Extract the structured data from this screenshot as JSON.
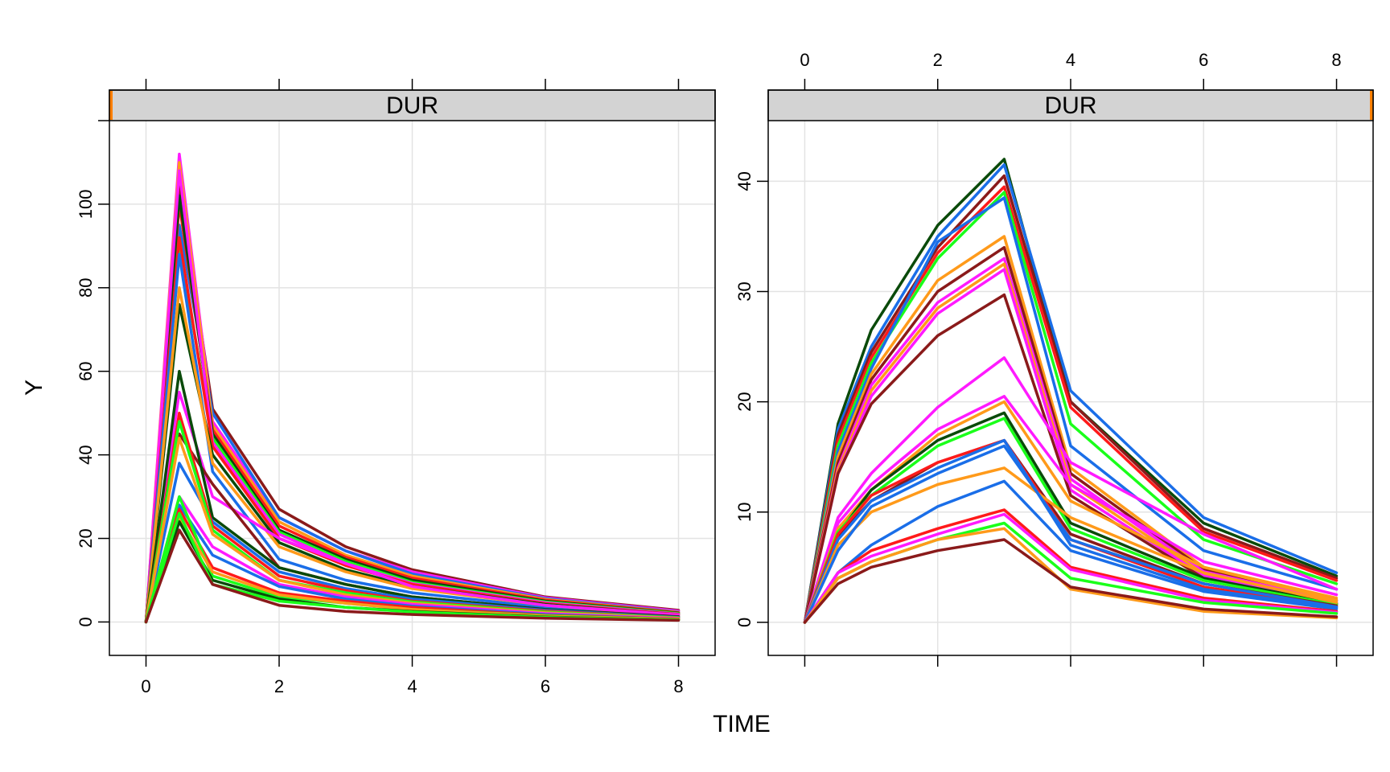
{
  "chart_data": {
    "type": "line",
    "xlabel": "TIME",
    "ylabel": "Y",
    "colors": [
      "#1a6ee8",
      "#ff9a1a",
      "#ff1aff",
      "#ff1a1a",
      "#1aff1a",
      "#0a4a0a",
      "#8a1a1a"
    ],
    "panels": [
      {
        "strip": "DUR",
        "x_tick_side": "bottom",
        "y_tick_side": "left",
        "xlim": [
          -0.55,
          8.55
        ],
        "ylim": [
          -8,
          120
        ],
        "xticks": [
          0,
          2,
          4,
          6,
          8
        ],
        "yticks": [
          0,
          20,
          40,
          60,
          80,
          100
        ],
        "x": [
          0,
          0.5,
          1,
          2,
          3,
          4,
          6,
          8
        ],
        "series": [
          {
            "color": "#8a1a1a",
            "values": [
              0,
              105,
              51,
              27,
              18,
              12.5,
              6,
              2.8
            ]
          },
          {
            "color": "#ff1aff",
            "values": [
              0,
              112,
              48,
              25,
              17,
              12,
              5.8,
              2.6
            ]
          },
          {
            "color": "#1a6ee8",
            "values": [
              0,
              95,
              50,
              25,
              17,
              11.5,
              5.6,
              2.4
            ]
          },
          {
            "color": "#ff9a1a",
            "values": [
              0,
              110,
              47,
              24,
              16,
              11,
              5.4,
              2.3
            ]
          },
          {
            "color": "#ff1a1a",
            "values": [
              0,
              100,
              46,
              23,
              15.5,
              10.5,
              5.2,
              2.2
            ]
          },
          {
            "color": "#0a4a0a",
            "values": [
              0,
              102,
              45,
              22,
              15,
              10,
              5,
              2.1
            ]
          },
          {
            "color": "#1aff1a",
            "values": [
              0,
              90,
              44,
              21.5,
              14.5,
              9.5,
              4.8,
              2
            ]
          },
          {
            "color": "#ff1aff",
            "values": [
              0,
              108,
              43,
              21,
              14,
              9.2,
              4.6,
              1.9
            ]
          },
          {
            "color": "#ff1a1a",
            "values": [
              0,
              92,
              42,
              20,
              13.5,
              9,
              4.4,
              1.8
            ]
          },
          {
            "color": "#0a4a0a",
            "values": [
              0,
              76,
              40,
              19,
              12.5,
              8.5,
              4.2,
              1.7
            ]
          },
          {
            "color": "#1a6ee8",
            "values": [
              0,
              88,
              36,
              15,
              10,
              7,
              3.5,
              1.5
            ]
          },
          {
            "color": "#ff9a1a",
            "values": [
              0,
              80,
              38,
              18,
              12,
              8,
              4,
              1.6
            ]
          },
          {
            "color": "#ff1aff",
            "values": [
              0,
              55,
              30,
              20,
              14,
              8.5,
              4,
              1.7
            ]
          },
          {
            "color": "#8a1a1a",
            "values": [
              0,
              45,
              33,
              13,
              9,
              6,
              3,
              1.3
            ]
          },
          {
            "color": "#0a4a0a",
            "values": [
              0,
              60,
              25,
              13,
              9,
              6,
              3,
              1.2
            ]
          },
          {
            "color": "#1a6ee8",
            "values": [
              0,
              38,
              24,
              12,
              8,
              5.5,
              2.8,
              1.1
            ]
          },
          {
            "color": "#ff1a1a",
            "values": [
              0,
              50,
              23,
              11,
              7.5,
              5,
              2.6,
              1
            ]
          },
          {
            "color": "#1aff1a",
            "values": [
              0,
              48,
              22,
              10,
              7,
              4.8,
              2.4,
              1
            ]
          },
          {
            "color": "#ff9a1a",
            "values": [
              0,
              44,
              21,
              10,
              6.5,
              4.5,
              2.2,
              0.9
            ]
          },
          {
            "color": "#ff1aff",
            "values": [
              0,
              30,
              18,
              9,
              6,
              4.2,
              2,
              0.8
            ]
          },
          {
            "color": "#1a6ee8",
            "values": [
              0,
              28,
              16,
              8.5,
              5.5,
              3.8,
              1.8,
              0.7
            ]
          },
          {
            "color": "#ff1a1a",
            "values": [
              0,
              27,
              13,
              7,
              5,
              3.5,
              1.6,
              0.7
            ]
          },
          {
            "color": "#1aff1a",
            "values": [
              0,
              30,
              11,
              6,
              4.5,
              3,
              1.5,
              0.6
            ]
          },
          {
            "color": "#ff9a1a",
            "values": [
              0,
              25,
              12,
              6.5,
              4.5,
              3,
              1.4,
              0.6
            ]
          },
          {
            "color": "#0a4a0a",
            "values": [
              0,
              24,
              10,
              5.5,
              3.5,
              2.5,
              1.2,
              0.5
            ]
          },
          {
            "color": "#1aff1a",
            "values": [
              0,
              26,
              9,
              5,
              3.5,
              2.4,
              1.1,
              0.5
            ]
          },
          {
            "color": "#8a1a1a",
            "values": [
              0,
              22,
              9,
              4,
              2.5,
              1.8,
              0.9,
              0.4
            ]
          }
        ]
      },
      {
        "strip": "DUR",
        "x_tick_side": "top",
        "y_tick_side": "left",
        "xlim": [
          -0.55,
          8.55
        ],
        "ylim": [
          -3,
          45.5
        ],
        "xticks": [
          0,
          2,
          4,
          6,
          8
        ],
        "yticks": [
          0,
          10,
          20,
          30,
          40
        ],
        "x": [
          0,
          0.5,
          1,
          2,
          3,
          4,
          6,
          8
        ],
        "series": [
          {
            "color": "#0a4a0a",
            "values": [
              0,
              18,
              26.5,
              36,
              42,
              20,
              9,
              4.2
            ]
          },
          {
            "color": "#1a6ee8",
            "values": [
              0,
              17.5,
              25,
              35,
              41.5,
              21,
              9.5,
              4.5
            ]
          },
          {
            "color": "#8a1a1a",
            "values": [
              0,
              17,
              24.5,
              34,
              40.5,
              20,
              8.5,
              4
            ]
          },
          {
            "color": "#ff1a1a",
            "values": [
              0,
              16.5,
              24,
              33.5,
              39.5,
              19.5,
              8.2,
              3.8
            ]
          },
          {
            "color": "#1aff1a",
            "values": [
              0,
              16,
              23.5,
              33,
              39,
              18,
              7.5,
              3.5
            ]
          },
          {
            "color": "#1a6ee8",
            "values": [
              0,
              15.5,
              23,
              34.5,
              38.5,
              16,
              6.5,
              3
            ]
          },
          {
            "color": "#ff9a1a",
            "values": [
              0,
              15,
              22.5,
              31,
              35,
              14,
              5,
              2.2
            ]
          },
          {
            "color": "#8a1a1a",
            "values": [
              0,
              14.5,
              22,
              30,
              34,
              13.5,
              4.8,
              2
            ]
          },
          {
            "color": "#ff1aff",
            "values": [
              0,
              14,
              21.5,
              29,
              33,
              13,
              4.6,
              1.9
            ]
          },
          {
            "color": "#ff9a1a",
            "values": [
              0,
              13.8,
              21,
              28.5,
              32.5,
              12.5,
              4.4,
              1.8
            ]
          },
          {
            "color": "#ff1aff",
            "values": [
              0,
              13.5,
              20.5,
              28,
              32,
              12,
              4.2,
              1.7
            ]
          },
          {
            "color": "#8a1a1a",
            "values": [
              0,
              13.5,
              19.8,
              26,
              29.7,
              11.5,
              4,
              1.6
            ]
          },
          {
            "color": "#ff1aff",
            "values": [
              0,
              9.5,
              13.5,
              19.5,
              24,
              14.5,
              8,
              3
            ]
          },
          {
            "color": "#ff1aff",
            "values": [
              0,
              9,
              12.5,
              17.5,
              20.5,
              12.5,
              5.5,
              2.5
            ]
          },
          {
            "color": "#ff9a1a",
            "values": [
              0,
              8.5,
              12,
              17,
              20,
              11,
              5,
              2
            ]
          },
          {
            "color": "#0a4a0a",
            "values": [
              0,
              8,
              12,
              16.5,
              19,
              9,
              4,
              1.7
            ]
          },
          {
            "color": "#1aff1a",
            "values": [
              0,
              8.2,
              11.5,
              16,
              18.5,
              8.5,
              3.8,
              1.6
            ]
          },
          {
            "color": "#8a1a1a",
            "values": [
              0,
              7.8,
              11,
              14.5,
              16.5,
              8,
              3.5,
              1.5
            ]
          },
          {
            "color": "#ff1a1a",
            "values": [
              0,
              8,
              11.5,
              14.5,
              16.5,
              7.5,
              3.2,
              1.4
            ]
          },
          {
            "color": "#1a6ee8",
            "values": [
              0,
              7.5,
              11,
              14,
              16.5,
              7,
              3,
              1.3
            ]
          },
          {
            "color": "#ff9a1a",
            "values": [
              0,
              7,
              10,
              12.5,
              14,
              9.5,
              4.5,
              1.8
            ]
          },
          {
            "color": "#1a6ee8",
            "values": [
              0,
              6.5,
              10.5,
              13.5,
              16,
              7.5,
              3.5,
              1.4
            ]
          },
          {
            "color": "#1a6ee8",
            "values": [
              0,
              4.5,
              7,
              10.5,
              12.8,
              6.5,
              2.8,
              1.2
            ]
          },
          {
            "color": "#ff1a1a",
            "values": [
              0,
              4.5,
              6.5,
              8.5,
              10.2,
              5,
              2.2,
              1
            ]
          },
          {
            "color": "#ff1aff",
            "values": [
              0,
              4.5,
              6,
              8,
              9.8,
              4.8,
              2,
              0.9
            ]
          },
          {
            "color": "#1aff1a",
            "values": [
              0,
              4,
              5.5,
              7.5,
              9,
              4,
              1.8,
              0.8
            ]
          },
          {
            "color": "#ff9a1a",
            "values": [
              0,
              4,
              5.5,
              7.5,
              8.5,
              3,
              1,
              0.4
            ]
          },
          {
            "color": "#8a1a1a",
            "values": [
              0,
              3.5,
              5,
              6.5,
              7.5,
              3.2,
              1.2,
              0.5
            ]
          }
        ]
      }
    ]
  }
}
